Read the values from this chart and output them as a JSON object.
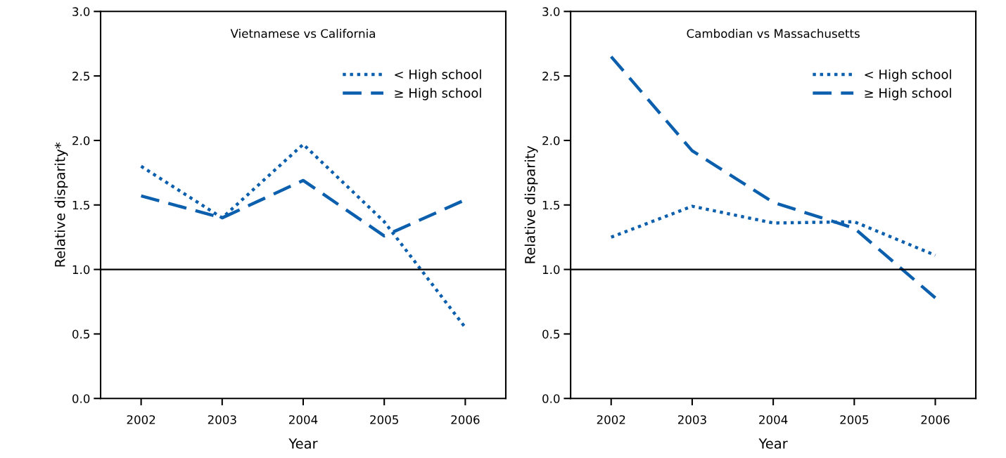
{
  "chart_data": [
    {
      "type": "line",
      "title": "Vietnamese vs California",
      "xlabel": "Year",
      "ylabel": "Relative disparity*",
      "categories": [
        "2002",
        "2003",
        "2004",
        "2005",
        "2006"
      ],
      "series": [
        {
          "name": "< High school",
          "color": "#0b5fad",
          "line_style": "dotted",
          "values": [
            1.8,
            1.4,
            1.97,
            1.37,
            0.55
          ]
        },
        {
          "name": "≥ High school",
          "color": "#0b5fad",
          "line_style": "dashed",
          "values": [
            1.57,
            1.4,
            1.69,
            1.26,
            1.54
          ]
        }
      ],
      "ylim": [
        0,
        3
      ],
      "yticks": [
        {
          "value": 0,
          "label": "0.0"
        },
        {
          "value": 0.5,
          "label": "0.5"
        },
        {
          "value": 1,
          "label": "1.0"
        },
        {
          "value": 1.5,
          "label": "1.5"
        },
        {
          "value": 2,
          "label": "2.0"
        },
        {
          "value": 2.5,
          "label": "2.5"
        },
        {
          "value": 3,
          "label": "3.0"
        }
      ],
      "ref_lines": [
        {
          "axis": "y",
          "value": 1,
          "color": "#000000"
        }
      ],
      "legend": "top right",
      "grid": false
    },
    {
      "type": "line",
      "title": "Cambodian vs Massachusetts",
      "xlabel": "Year",
      "ylabel": "Relative disparity",
      "categories": [
        "2002",
        "2003",
        "2004",
        "2005",
        "2006"
      ],
      "series": [
        {
          "name": "< High school",
          "color": "#0b5fad",
          "line_style": "dotted",
          "values": [
            1.25,
            1.49,
            1.36,
            1.37,
            1.11
          ]
        },
        {
          "name": "≥ High school",
          "color": "#0b5fad",
          "line_style": "dashed",
          "values": [
            2.65,
            1.92,
            1.52,
            1.32,
            0.78
          ]
        }
      ],
      "ylim": [
        0,
        3
      ],
      "yticks": [
        {
          "value": 0,
          "label": "0.0"
        },
        {
          "value": 0.5,
          "label": "0.5"
        },
        {
          "value": 1,
          "label": "1.0"
        },
        {
          "value": 1.5,
          "label": "1.5"
        },
        {
          "value": 2,
          "label": "2.0"
        },
        {
          "value": 2.5,
          "label": "2.5"
        },
        {
          "value": 3,
          "label": "3.0"
        }
      ],
      "ref_lines": [
        {
          "axis": "y",
          "value": 1,
          "color": "#000000"
        }
      ],
      "legend": "top right",
      "grid": false
    }
  ]
}
